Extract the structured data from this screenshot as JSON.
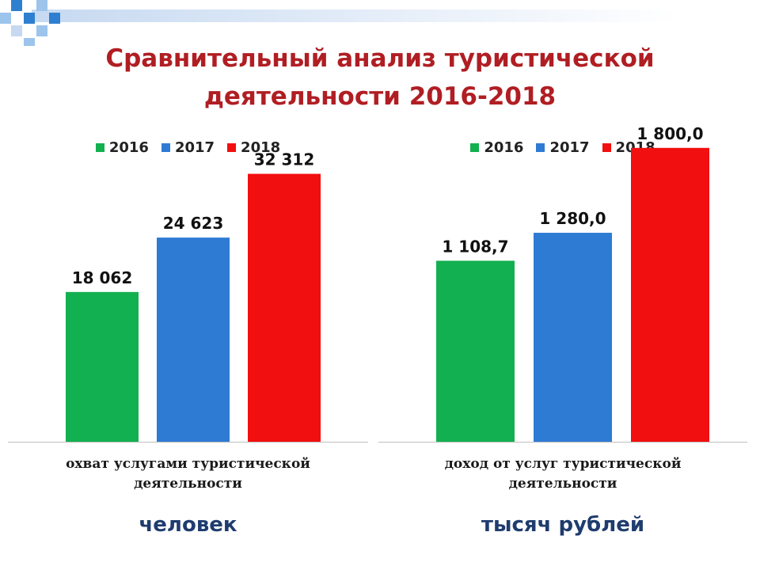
{
  "slide": {
    "title_line1": "Сравнительный анализ туристической",
    "title_line2": "деятельности 2016-2018"
  },
  "colors": {
    "2016": "#12b050",
    "2017": "#2e7bd4",
    "2018": "#f20f0f",
    "title": "#b01e23",
    "unit": "#1f3c6e"
  },
  "chart_data": [
    {
      "type": "bar",
      "categories": [
        "2016",
        "2017",
        "2018"
      ],
      "values": [
        18062,
        24623,
        32312
      ],
      "value_labels": [
        "18 062",
        "24 623",
        "32 312"
      ],
      "legend": [
        "2016",
        "2017",
        "2018"
      ],
      "xlabel_line1": "охват услугами туристической",
      "xlabel_line2": "деятельности",
      "unit": "человек",
      "ylim": [
        0,
        38000
      ],
      "grid": false,
      "legend_position": "top"
    },
    {
      "type": "bar",
      "categories": [
        "2016",
        "2017",
        "2018"
      ],
      "values": [
        1108.7,
        1280.0,
        1800.0
      ],
      "value_labels": [
        "1 108,7",
        "1 280,0",
        "1 800,0"
      ],
      "legend": [
        "2016",
        "2017",
        "2018"
      ],
      "xlabel_line1": "доход от услуг туристической",
      "xlabel_line2": "деятельности",
      "unit": "тысяч рублей",
      "ylim": [
        0,
        1930
      ],
      "grid": false,
      "legend_position": "top"
    }
  ]
}
